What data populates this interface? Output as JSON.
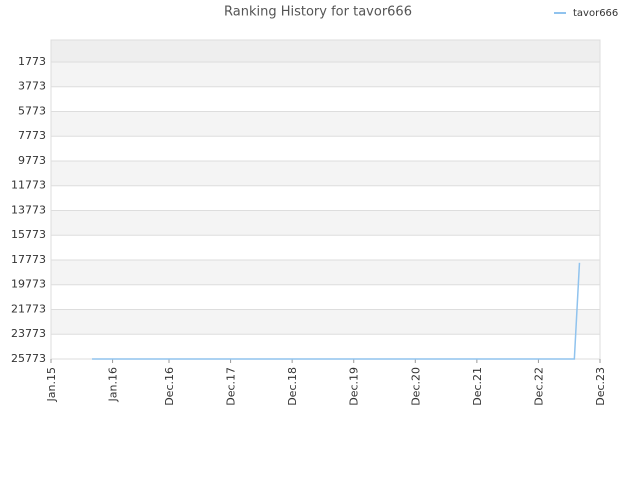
{
  "chart_data": {
    "type": "line",
    "title": "Ranking History for tavor666",
    "x": [
      "2015-09",
      "2023-07",
      "2023-08"
    ],
    "series": [
      {
        "name": "tavor666",
        "color": "#90c3ee",
        "values": [
          25773,
          25773,
          18000
        ]
      }
    ],
    "ylim": [
      25773,
      0
    ],
    "yticks": [
      1773,
      3773,
      5773,
      7773,
      9773,
      11773,
      13773,
      15773,
      17773,
      19773,
      21773,
      23773,
      25773
    ],
    "xlim": [
      "2015-01",
      "2023-12"
    ],
    "xticks": [
      {
        "value": "2015-01",
        "label": "Jan.15"
      },
      {
        "value": "2016-01",
        "label": "Jan.16"
      },
      {
        "value": "2016-12",
        "label": "Dec.16"
      },
      {
        "value": "2017-12",
        "label": "Dec.17"
      },
      {
        "value": "2018-12",
        "label": "Dec.18"
      },
      {
        "value": "2019-12",
        "label": "Dec.19"
      },
      {
        "value": "2020-12",
        "label": "Dec.20"
      },
      {
        "value": "2021-12",
        "label": "Dec.21"
      },
      {
        "value": "2022-12",
        "label": "Dec.22"
      },
      {
        "value": "2023-12",
        "label": "Dec.23"
      }
    ],
    "y_inverted": true,
    "grid": true,
    "legend": "top-right"
  }
}
